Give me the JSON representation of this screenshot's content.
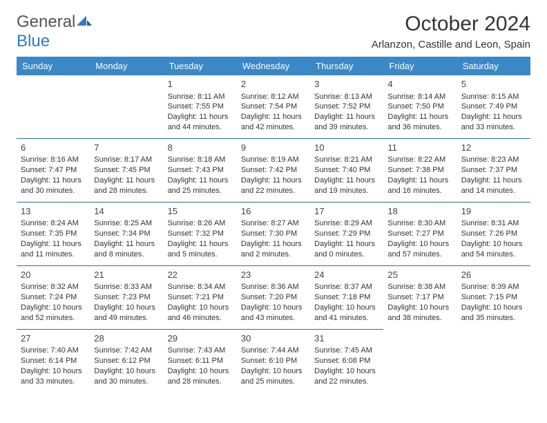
{
  "brand": {
    "part1": "General",
    "part2": "Blue"
  },
  "title": "October 2024",
  "location": "Arlanzon, Castille and Leon, Spain",
  "colors": {
    "header_bg": "#3b88c7",
    "header_text": "#ffffff",
    "rule": "#2e6ea8",
    "brand_gray": "#555555",
    "brand_blue": "#2f7bbf",
    "body_text": "#333333",
    "page_bg": "#ffffff"
  },
  "typography": {
    "title_fontsize": 30,
    "location_fontsize": 15,
    "dayheader_fontsize": 13,
    "daynum_fontsize": 13,
    "body_fontsize": 11
  },
  "dayHeaders": [
    "Sunday",
    "Monday",
    "Tuesday",
    "Wednesday",
    "Thursday",
    "Friday",
    "Saturday"
  ],
  "weeks": [
    [
      null,
      null,
      {
        "n": "1",
        "sr": "Sunrise: 8:11 AM",
        "ss": "Sunset: 7:55 PM",
        "dl": "Daylight: 11 hours and 44 minutes."
      },
      {
        "n": "2",
        "sr": "Sunrise: 8:12 AM",
        "ss": "Sunset: 7:54 PM",
        "dl": "Daylight: 11 hours and 42 minutes."
      },
      {
        "n": "3",
        "sr": "Sunrise: 8:13 AM",
        "ss": "Sunset: 7:52 PM",
        "dl": "Daylight: 11 hours and 39 minutes."
      },
      {
        "n": "4",
        "sr": "Sunrise: 8:14 AM",
        "ss": "Sunset: 7:50 PM",
        "dl": "Daylight: 11 hours and 36 minutes."
      },
      {
        "n": "5",
        "sr": "Sunrise: 8:15 AM",
        "ss": "Sunset: 7:49 PM",
        "dl": "Daylight: 11 hours and 33 minutes."
      }
    ],
    [
      {
        "n": "6",
        "sr": "Sunrise: 8:16 AM",
        "ss": "Sunset: 7:47 PM",
        "dl": "Daylight: 11 hours and 30 minutes."
      },
      {
        "n": "7",
        "sr": "Sunrise: 8:17 AM",
        "ss": "Sunset: 7:45 PM",
        "dl": "Daylight: 11 hours and 28 minutes."
      },
      {
        "n": "8",
        "sr": "Sunrise: 8:18 AM",
        "ss": "Sunset: 7:43 PM",
        "dl": "Daylight: 11 hours and 25 minutes."
      },
      {
        "n": "9",
        "sr": "Sunrise: 8:19 AM",
        "ss": "Sunset: 7:42 PM",
        "dl": "Daylight: 11 hours and 22 minutes."
      },
      {
        "n": "10",
        "sr": "Sunrise: 8:21 AM",
        "ss": "Sunset: 7:40 PM",
        "dl": "Daylight: 11 hours and 19 minutes."
      },
      {
        "n": "11",
        "sr": "Sunrise: 8:22 AM",
        "ss": "Sunset: 7:38 PM",
        "dl": "Daylight: 11 hours and 16 minutes."
      },
      {
        "n": "12",
        "sr": "Sunrise: 8:23 AM",
        "ss": "Sunset: 7:37 PM",
        "dl": "Daylight: 11 hours and 14 minutes."
      }
    ],
    [
      {
        "n": "13",
        "sr": "Sunrise: 8:24 AM",
        "ss": "Sunset: 7:35 PM",
        "dl": "Daylight: 11 hours and 11 minutes."
      },
      {
        "n": "14",
        "sr": "Sunrise: 8:25 AM",
        "ss": "Sunset: 7:34 PM",
        "dl": "Daylight: 11 hours and 8 minutes."
      },
      {
        "n": "15",
        "sr": "Sunrise: 8:26 AM",
        "ss": "Sunset: 7:32 PM",
        "dl": "Daylight: 11 hours and 5 minutes."
      },
      {
        "n": "16",
        "sr": "Sunrise: 8:27 AM",
        "ss": "Sunset: 7:30 PM",
        "dl": "Daylight: 11 hours and 2 minutes."
      },
      {
        "n": "17",
        "sr": "Sunrise: 8:29 AM",
        "ss": "Sunset: 7:29 PM",
        "dl": "Daylight: 11 hours and 0 minutes."
      },
      {
        "n": "18",
        "sr": "Sunrise: 8:30 AM",
        "ss": "Sunset: 7:27 PM",
        "dl": "Daylight: 10 hours and 57 minutes."
      },
      {
        "n": "19",
        "sr": "Sunrise: 8:31 AM",
        "ss": "Sunset: 7:26 PM",
        "dl": "Daylight: 10 hours and 54 minutes."
      }
    ],
    [
      {
        "n": "20",
        "sr": "Sunrise: 8:32 AM",
        "ss": "Sunset: 7:24 PM",
        "dl": "Daylight: 10 hours and 52 minutes."
      },
      {
        "n": "21",
        "sr": "Sunrise: 8:33 AM",
        "ss": "Sunset: 7:23 PM",
        "dl": "Daylight: 10 hours and 49 minutes."
      },
      {
        "n": "22",
        "sr": "Sunrise: 8:34 AM",
        "ss": "Sunset: 7:21 PM",
        "dl": "Daylight: 10 hours and 46 minutes."
      },
      {
        "n": "23",
        "sr": "Sunrise: 8:36 AM",
        "ss": "Sunset: 7:20 PM",
        "dl": "Daylight: 10 hours and 43 minutes."
      },
      {
        "n": "24",
        "sr": "Sunrise: 8:37 AM",
        "ss": "Sunset: 7:18 PM",
        "dl": "Daylight: 10 hours and 41 minutes."
      },
      {
        "n": "25",
        "sr": "Sunrise: 8:38 AM",
        "ss": "Sunset: 7:17 PM",
        "dl": "Daylight: 10 hours and 38 minutes."
      },
      {
        "n": "26",
        "sr": "Sunrise: 8:39 AM",
        "ss": "Sunset: 7:15 PM",
        "dl": "Daylight: 10 hours and 35 minutes."
      }
    ],
    [
      {
        "n": "27",
        "sr": "Sunrise: 7:40 AM",
        "ss": "Sunset: 6:14 PM",
        "dl": "Daylight: 10 hours and 33 minutes."
      },
      {
        "n": "28",
        "sr": "Sunrise: 7:42 AM",
        "ss": "Sunset: 6:12 PM",
        "dl": "Daylight: 10 hours and 30 minutes."
      },
      {
        "n": "29",
        "sr": "Sunrise: 7:43 AM",
        "ss": "Sunset: 6:11 PM",
        "dl": "Daylight: 10 hours and 28 minutes."
      },
      {
        "n": "30",
        "sr": "Sunrise: 7:44 AM",
        "ss": "Sunset: 6:10 PM",
        "dl": "Daylight: 10 hours and 25 minutes."
      },
      {
        "n": "31",
        "sr": "Sunrise: 7:45 AM",
        "ss": "Sunset: 6:08 PM",
        "dl": "Daylight: 10 hours and 22 minutes."
      },
      null,
      null
    ]
  ]
}
